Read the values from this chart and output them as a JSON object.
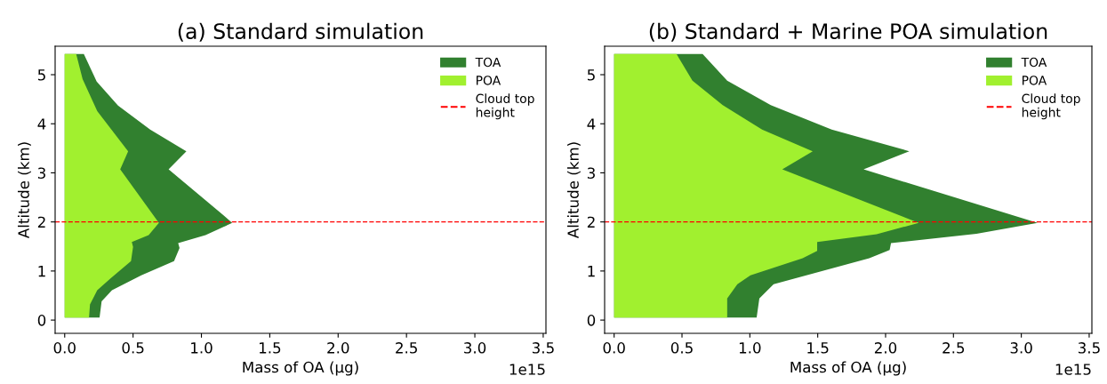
{
  "chart_data": [
    {
      "type": "area",
      "orientation": "horizontal",
      "title": "(a) Standard simulation",
      "xlabel": "Mass of OA (µg)",
      "ylabel": "Altitude (km)",
      "series": [
        {
          "name": "TOA",
          "color": "#31802f",
          "x": [
            5.42,
            4.86,
            4.37,
            3.88,
            3.44,
            3.07,
            2.14,
            1.98,
            1.73,
            1.57,
            1.47,
            1.2,
            0.91,
            0.61,
            0.38,
            0.05
          ],
          "values": [
            0.14,
            0.234,
            0.39,
            0.625,
            0.89,
            0.76,
            1.16,
            1.225,
            1.03,
            0.83,
            0.84,
            0.8,
            0.56,
            0.346,
            0.27,
            0.255
          ]
        },
        {
          "name": "POA",
          "color": "#a1f02f",
          "x": [
            5.42,
            4.91,
            4.26,
            3.44,
            3.07,
            1.98,
            1.73,
            1.59,
            1.49,
            1.2,
            0.85,
            0.61,
            0.32,
            0.05
          ],
          "values": [
            0.084,
            0.131,
            0.238,
            0.464,
            0.406,
            0.689,
            0.614,
            0.491,
            0.5,
            0.485,
            0.335,
            0.238,
            0.185,
            0.178
          ]
        }
      ],
      "ref_lines": [
        {
          "axis": "y",
          "value": 2,
          "label": "Cloud top\nheight",
          "color": "#ff0000",
          "line_style": "dashed"
        }
      ],
      "xlim": [
        -0.07,
        3.52
      ],
      "xticks": [
        {
          "value": 0,
          "label": "0.0"
        },
        0.5,
        {
          "value": 1,
          "label": "1.0"
        },
        1.5,
        {
          "value": 2,
          "label": "2.0"
        },
        2.5,
        {
          "value": 3,
          "label": "3.0"
        },
        3.5
      ],
      "ylim": [
        -0.27,
        5.58
      ],
      "yticks": [
        0,
        1,
        2,
        3,
        4,
        5
      ],
      "annotations": [
        "1e15"
      ],
      "legend": "top right",
      "grid": false
    },
    {
      "type": "area",
      "orientation": "horizontal",
      "title": "(b) Standard + Marine POA simulation",
      "xlabel": "Mass of OA (µg)",
      "ylabel": "Altitude (km)",
      "series": [
        {
          "name": "TOA",
          "color": "#31802f",
          "x": [
            5.42,
            4.88,
            4.38,
            3.88,
            3.44,
            3.07,
            1.98,
            1.76,
            1.57,
            1.43,
            1.26,
            0.73,
            0.44,
            0.05
          ],
          "values": [
            0.652,
            0.833,
            1.154,
            1.603,
            2.175,
            1.838,
            3.12,
            2.67,
            2.04,
            2.03,
            1.88,
            1.175,
            1.07,
            1.05
          ]
        },
        {
          "name": "POA",
          "color": "#a1f02f",
          "x": [
            5.42,
            4.88,
            4.38,
            3.88,
            3.44,
            3.07,
            1.98,
            1.75,
            1.59,
            1.41,
            1.26,
            0.91,
            0.73,
            0.44,
            0.05
          ],
          "values": [
            0.46,
            0.577,
            0.8,
            1.09,
            1.463,
            1.239,
            2.244,
            1.934,
            1.496,
            1.496,
            1.389,
            1.004,
            0.908,
            0.833,
            0.833
          ]
        }
      ],
      "ref_lines": [
        {
          "axis": "y",
          "value": 2,
          "label": "Cloud top\nheight",
          "color": "#ff0000",
          "line_style": "dashed"
        }
      ],
      "xlim": [
        -0.07,
        3.52
      ],
      "xticks": [
        {
          "value": 0,
          "label": "0.0"
        },
        0.5,
        {
          "value": 1,
          "label": "1.0"
        },
        1.5,
        {
          "value": 2,
          "label": "2.0"
        },
        2.5,
        {
          "value": 3,
          "label": "3.0"
        },
        3.5
      ],
      "ylim": [
        -0.27,
        5.58
      ],
      "yticks": [
        0,
        1,
        2,
        3,
        4,
        5
      ],
      "annotations": [
        "1e15"
      ],
      "legend": "top right",
      "grid": false
    }
  ]
}
